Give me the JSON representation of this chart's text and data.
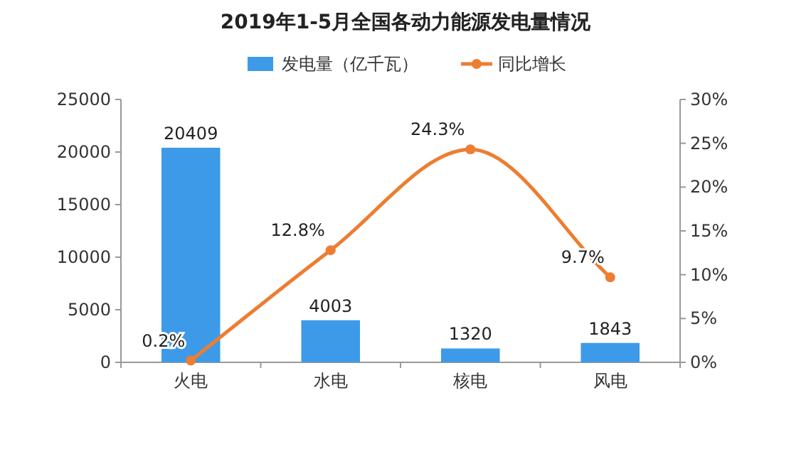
{
  "chart_data": {
    "type": "bar",
    "title": "2019年1-5月全国各动力能源发电量情况",
    "categories": [
      "火电",
      "水电",
      "核电",
      "风电"
    ],
    "series": [
      {
        "name": "发电量（亿千瓦）",
        "color": "#3d9ae8",
        "values": [
          20409,
          4003,
          1320,
          1843
        ],
        "value_labels": [
          "20409",
          "4003",
          "1320",
          "1843"
        ]
      },
      {
        "name": "同比增长",
        "type": "line",
        "axis": "y2",
        "color": "#ed7d31",
        "marker": "circle",
        "values": [
          0.2,
          12.8,
          24.3,
          9.7
        ],
        "value_labels": [
          "0.2%",
          "12.8%",
          "24.3%",
          "9.7%"
        ]
      }
    ],
    "ylim": [
      0,
      25000
    ],
    "yticks": [
      0,
      5000,
      10000,
      15000,
      20000,
      25000
    ],
    "y2lim": [
      0,
      30
    ],
    "y2ticks": [
      {
        "value": 0,
        "label": "0%"
      },
      {
        "value": 5,
        "label": "5%"
      },
      {
        "value": 10,
        "label": "10%"
      },
      {
        "value": 15,
        "label": "15%"
      },
      {
        "value": 20,
        "label": "20%"
      },
      {
        "value": 25,
        "label": "25%"
      },
      {
        "value": 30,
        "label": "30%"
      }
    ],
    "legend": "top",
    "grid": false
  }
}
